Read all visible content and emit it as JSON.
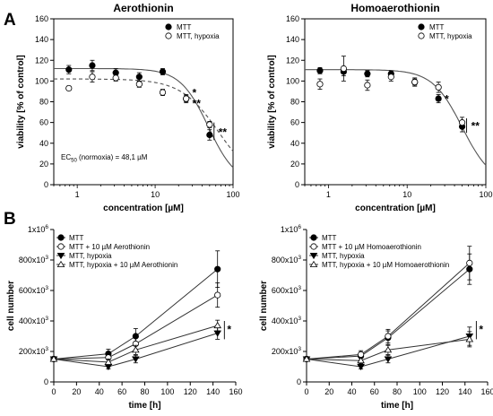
{
  "panels": [
    {
      "label": "A"
    },
    {
      "label": "B"
    }
  ],
  "chart_data": [
    {
      "type": "scatter",
      "panel": "A",
      "title": "Aerothionin",
      "xlabel": "concentration [µM]",
      "ylabel": "viability [% of control]",
      "xscale": "log",
      "xlim": [
        0.5,
        100
      ],
      "ylim": [
        0,
        160
      ],
      "xticks": [
        {
          "v": 1,
          "label": "1"
        },
        {
          "v": 10,
          "label": "10"
        },
        {
          "v": 100,
          "label": "100"
        }
      ],
      "yticks": [
        0,
        20,
        40,
        60,
        80,
        100,
        120,
        140,
        160
      ],
      "legend_position": "top-right",
      "annotation": {
        "prefix": "EC",
        "sub": "50",
        "suffix": " (normoxia) = 48,1 µM"
      },
      "significance": [
        "*",
        "**",
        "**"
      ],
      "series": [
        {
          "name": "MTT",
          "marker": "filled-circle",
          "line": "solid",
          "x": [
            0.78,
            1.56,
            3.125,
            6.25,
            12.5,
            25,
            50
          ],
          "y": [
            111,
            115,
            108,
            104,
            109,
            83,
            48
          ],
          "err": [
            4,
            5,
            4,
            4,
            3,
            3,
            5
          ]
        },
        {
          "name": "MTT, hypoxia",
          "marker": "open-circle",
          "line": "dashed",
          "x": [
            0.78,
            1.56,
            3.125,
            6.25,
            12.5,
            25,
            50
          ],
          "y": [
            93,
            104,
            103,
            97,
            89,
            83,
            58
          ],
          "err": [
            2,
            5,
            3,
            3,
            3,
            4,
            3
          ]
        }
      ],
      "fits": [
        {
          "series": "MTT",
          "top": 112,
          "ec50": 48.1,
          "hill": 2.4
        },
        {
          "series": "MTT, hypoxia",
          "top": 102,
          "ec50": 65,
          "hill": 1.8
        }
      ]
    },
    {
      "type": "scatter",
      "panel": "A",
      "title": "Homoaerothionin",
      "xlabel": "concentration [µM]",
      "ylabel": "viability [% of control]",
      "xscale": "log",
      "xlim": [
        0.5,
        100
      ],
      "ylim": [
        0,
        160
      ],
      "xticks": [
        {
          "v": 1,
          "label": "1"
        },
        {
          "v": 10,
          "label": "10"
        },
        {
          "v": 100,
          "label": "100"
        }
      ],
      "yticks": [
        0,
        20,
        40,
        60,
        80,
        100,
        120,
        140,
        160
      ],
      "legend_position": "top-right",
      "significance": [
        "*",
        "**"
      ],
      "series": [
        {
          "name": "MTT",
          "marker": "filled-circle",
          "line": "solid",
          "x": [
            0.78,
            1.56,
            3.125,
            6.25,
            12.5,
            25,
            50
          ],
          "y": [
            110,
            109,
            107,
            107,
            99,
            83,
            56
          ],
          "err": [
            3,
            4,
            3,
            3,
            3,
            4,
            5
          ]
        },
        {
          "name": "MTT, hypoxia",
          "marker": "open-circle",
          "line": "none",
          "x": [
            0.78,
            1.56,
            3.125,
            6.25,
            12.5,
            25,
            50
          ],
          "y": [
            97,
            112,
            96,
            104,
            99,
            94,
            60
          ],
          "err": [
            5,
            12,
            5,
            4,
            4,
            5,
            5
          ]
        }
      ],
      "fits": [
        {
          "series": "MTT",
          "top": 111,
          "ec50": 50,
          "hill": 2.3
        }
      ]
    },
    {
      "type": "line",
      "panel": "B",
      "title": "",
      "xlabel": "time [h]",
      "ylabel": "cell number",
      "xlim": [
        0,
        160
      ],
      "ylim": [
        0,
        1000000
      ],
      "xticks": [
        0,
        20,
        40,
        60,
        80,
        100,
        120,
        140,
        160
      ],
      "yticks": [
        {
          "v": 0,
          "m": "0",
          "e": ""
        },
        {
          "v": 200000,
          "m": "200x10",
          "e": "3"
        },
        {
          "v": 400000,
          "m": "400x10",
          "e": "3"
        },
        {
          "v": 600000,
          "m": "600x10",
          "e": "3"
        },
        {
          "v": 800000,
          "m": "800x10",
          "e": "3"
        },
        {
          "v": 1000000,
          "m": "1x10",
          "e": "6"
        }
      ],
      "legend_position": "top-left",
      "significance": [
        "*"
      ],
      "series": [
        {
          "name": "MTT",
          "marker": "filled-circle",
          "x": [
            0,
            48,
            72,
            144
          ],
          "y": [
            150000,
            185000,
            300000,
            740000
          ],
          "err": [
            5000,
            30000,
            50000,
            120000
          ]
        },
        {
          "name": "MTT + 10 µM Aerothionin",
          "marker": "open-circle",
          "x": [
            0,
            48,
            72,
            144
          ],
          "y": [
            150000,
            160000,
            250000,
            570000
          ],
          "err": [
            5000,
            30000,
            40000,
            80000
          ]
        },
        {
          "name": "MTT, hypoxia",
          "marker": "filled-triangle-down",
          "x": [
            0,
            48,
            72,
            144
          ],
          "y": [
            150000,
            100000,
            150000,
            320000
          ],
          "err": [
            5000,
            15000,
            25000,
            40000
          ]
        },
        {
          "name": "MTT, hypoxia + 10 µM Aerothionin",
          "marker": "open-triangle-up",
          "x": [
            0,
            48,
            72,
            144
          ],
          "y": [
            150000,
            130000,
            210000,
            370000
          ],
          "err": [
            5000,
            20000,
            30000,
            35000
          ]
        }
      ]
    },
    {
      "type": "line",
      "panel": "B",
      "title": "",
      "xlabel": "time [h]",
      "ylabel": "cell number",
      "xlim": [
        0,
        160
      ],
      "ylim": [
        0,
        1000000
      ],
      "xticks": [
        0,
        20,
        40,
        60,
        80,
        100,
        120,
        140,
        160
      ],
      "yticks": [
        {
          "v": 0,
          "m": "0",
          "e": ""
        },
        {
          "v": 200000,
          "m": "200x10",
          "e": "3"
        },
        {
          "v": 400000,
          "m": "400x10",
          "e": "3"
        },
        {
          "v": 600000,
          "m": "600x10",
          "e": "3"
        },
        {
          "v": 800000,
          "m": "800x10",
          "e": "3"
        },
        {
          "v": 1000000,
          "m": "1x10",
          "e": "6"
        }
      ],
      "legend_position": "top-left",
      "significance": [
        "*"
      ],
      "series": [
        {
          "name": "MTT",
          "marker": "filled-circle",
          "x": [
            0,
            48,
            72,
            144
          ],
          "y": [
            150000,
            170000,
            290000,
            740000
          ],
          "err": [
            5000,
            25000,
            45000,
            100000
          ]
        },
        {
          "name": "MTT + 10 µM Homoaerothionin",
          "marker": "open-circle",
          "x": [
            0,
            48,
            72,
            144
          ],
          "y": [
            150000,
            180000,
            300000,
            780000
          ],
          "err": [
            5000,
            25000,
            45000,
            110000
          ]
        },
        {
          "name": "MTT, hypoxia",
          "marker": "filled-triangle-down",
          "x": [
            0,
            48,
            72,
            144
          ],
          "y": [
            150000,
            100000,
            150000,
            300000
          ],
          "err": [
            5000,
            15000,
            25000,
            60000
          ]
        },
        {
          "name": "MTT, hypoxia + 10 µM Homoaerothionin",
          "marker": "open-triangle-up",
          "x": [
            0,
            48,
            72,
            144
          ],
          "y": [
            150000,
            140000,
            210000,
            280000
          ],
          "err": [
            5000,
            20000,
            30000,
            50000
          ]
        }
      ]
    }
  ]
}
